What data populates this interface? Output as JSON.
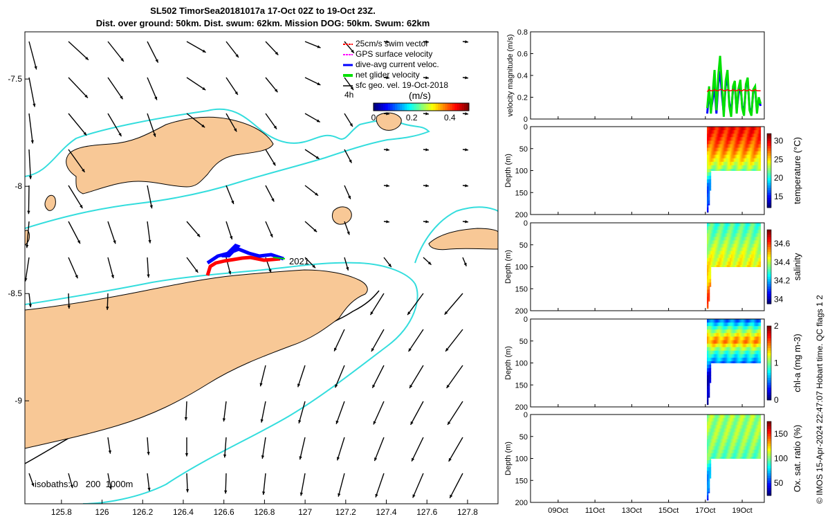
{
  "title": {
    "line1": "SL502 TimorSea20181017a 17-Oct 02Z to 19-Oct 23Z.",
    "line2": "Dist. over ground: 50km. Dist. swum: 62km. Mission DOG: 50km. Swum: 62km"
  },
  "credit": "© IMOS 15-Apr-2024 22:47:07 Hobart time. QC flags 1  2",
  "colors": {
    "land": "#f8c896",
    "coast_edge": "#000000",
    "isobath_200": "#000000",
    "isobath_1000": "#33dddd",
    "track_gps": "#ff0000",
    "track_current": "#0000ff",
    "net_velocity": "#00e000",
    "velocity_magnitude_line": "#0000ff"
  },
  "map": {
    "xticks": [
      "125.8",
      "126",
      "126.2",
      "126.4",
      "126.6",
      "126.8",
      "127",
      "127.2",
      "127.4",
      "127.6",
      "127.8"
    ],
    "yticks": [
      "-7.5",
      "-8",
      "-8.5",
      "-9"
    ],
    "xlim": [
      125.62,
      127.95
    ],
    "ylim": [
      -9.48,
      -7.28
    ],
    "legend": [
      {
        "label": "25cm/s swim vector",
        "color": "#ff0000"
      },
      {
        "label": "GPS surface velocity",
        "color": "#ff00ff"
      },
      {
        "label": "dive-avg current veloc.",
        "color": "#0000ff"
      },
      {
        "label": "net glider velocity",
        "color": "#00e000"
      },
      {
        "label": "sfc geo. vel. 19-Oct-2018",
        "color": "#000000"
      }
    ],
    "colorbar": {
      "title": "(m/s)",
      "tick_labels": [
        "0",
        "0.2",
        "0.4"
      ],
      "range": [
        0,
        0.5
      ],
      "note": "4h"
    },
    "track_label": "2021",
    "isobath_label": "isobaths: 0   200  1000m"
  },
  "time_axis": {
    "labels": [
      "09Oct",
      "11Oct",
      "13Oct",
      "15Oct",
      "17Oct",
      "19Oct"
    ],
    "days": [
      9,
      11,
      13,
      15,
      17,
      19
    ],
    "range_days": [
      7.5,
      20.2
    ],
    "data_start_day": 17.08,
    "data_end_day": 20.0
  },
  "chart_data": [
    {
      "type": "line",
      "title": "",
      "xlabel": "",
      "ylabel": "velocity magnitude (m/s)",
      "ylim": [
        0,
        0.8
      ],
      "yticks": [
        "0",
        "0.2",
        "0.4",
        "0.6",
        "0.8"
      ],
      "x_units": "day of October 2018",
      "x": [
        17.1,
        17.2,
        17.3,
        17.4,
        17.5,
        17.6,
        17.7,
        17.8,
        17.9,
        18.0,
        18.1,
        18.2,
        18.3,
        18.4,
        18.5,
        18.6,
        18.7,
        18.8,
        18.9,
        19.0,
        19.1,
        19.2,
        19.3,
        19.4,
        19.5,
        19.6,
        19.7,
        19.8,
        19.9,
        20.0
      ],
      "series": [
        {
          "color": "#0000ff",
          "values": [
            0.05,
            0.25,
            0.08,
            0.18,
            0.3,
            0.05,
            0.32,
            0.44,
            0.22,
            0.05,
            0.3,
            0.38,
            0.15,
            0.05,
            0.28,
            0.3,
            0.08,
            0.22,
            0.32,
            0.12,
            0.06,
            0.3,
            0.35,
            0.1,
            0.05,
            0.25,
            0.28,
            0.08,
            0.18,
            0.12
          ]
        },
        {
          "color": "#00e000",
          "values": [
            0.1,
            0.3,
            0.05,
            0.25,
            0.45,
            0.08,
            0.4,
            0.58,
            0.3,
            0.02,
            0.35,
            0.45,
            0.12,
            0.02,
            0.3,
            0.35,
            0.05,
            0.28,
            0.36,
            0.1,
            0.03,
            0.32,
            0.38,
            0.08,
            0.03,
            0.27,
            0.3,
            0.05,
            0.2,
            0.14
          ]
        },
        {
          "color": "#ff0000",
          "values": [
            0.25,
            0.27,
            0.26,
            0.26,
            0.27,
            0.26,
            0.26,
            0.27,
            0.27,
            0.26,
            0.26,
            0.27,
            0.26,
            0.26,
            0.27,
            0.26,
            0.26,
            0.27,
            0.26,
            0.26,
            0.27,
            0.26,
            0.26,
            0.27,
            0.26,
            0.26,
            0.27,
            0.26,
            0.26,
            0.26
          ]
        }
      ]
    },
    {
      "type": "heatmap",
      "ylabel": "Depth (m)",
      "ylim": [
        200,
        0
      ],
      "yticks": [
        "0",
        "50",
        "100",
        "150",
        "200"
      ],
      "colorbar_label": "temperature (°C)",
      "colorbar_range": [
        12,
        32
      ],
      "colorbar_ticks": [
        "15",
        "20",
        "25",
        "30"
      ],
      "profile_depth_days": [
        17.08,
        17.15,
        17.25,
        17.3,
        20.0
      ],
      "profile_depth_m": [
        200,
        190,
        160,
        100,
        100
      ],
      "depth_levels_m": [
        0,
        25,
        50,
        75,
        100,
        125,
        150,
        175,
        200
      ],
      "profile_values": [
        29.5,
        28.5,
        27.0,
        25.0,
        22.0,
        18.5,
        16.0,
        15.0,
        14.0
      ]
    },
    {
      "type": "heatmap",
      "ylabel": "Depth (m)",
      "ylim": [
        200,
        0
      ],
      "yticks": [
        "0",
        "50",
        "100",
        "150",
        "200"
      ],
      "colorbar_label": "salinity",
      "colorbar_range": [
        33.95,
        34.75
      ],
      "colorbar_ticks": [
        "34",
        "34.2",
        "34.4",
        "34.6"
      ],
      "profile_depth_days": [
        17.08,
        17.15,
        17.25,
        17.3,
        20.0
      ],
      "profile_depth_m": [
        200,
        190,
        160,
        100,
        100
      ],
      "depth_levels_m": [
        0,
        25,
        50,
        75,
        100,
        125,
        150,
        175,
        200
      ],
      "profile_values": [
        34.3,
        34.33,
        34.38,
        34.42,
        34.45,
        34.5,
        34.55,
        34.58,
        34.6
      ]
    },
    {
      "type": "heatmap",
      "ylabel": "Depth (m)",
      "ylim": [
        200,
        0
      ],
      "yticks": [
        "0",
        "50",
        "100",
        "150",
        "200"
      ],
      "colorbar_label": "chl-a (mg m-3)",
      "colorbar_range": [
        0,
        2
      ],
      "colorbar_ticks": [
        "0",
        "1",
        "2"
      ],
      "profile_depth_days": [
        17.08,
        17.15,
        17.25,
        17.3,
        20.0
      ],
      "profile_depth_m": [
        200,
        190,
        160,
        100,
        100
      ],
      "depth_levels_m": [
        0,
        25,
        50,
        75,
        100,
        125,
        150,
        175,
        200
      ],
      "profile_values": [
        0.4,
        1.0,
        1.5,
        0.9,
        0.5,
        0.25,
        0.1,
        0.05,
        0.02
      ]
    },
    {
      "type": "heatmap",
      "ylabel": "Depth (m)",
      "ylim": [
        200,
        0
      ],
      "yticks": [
        "0",
        "50",
        "100",
        "150",
        "200"
      ],
      "colorbar_label": "Ox. sat. ratio (%)",
      "colorbar_range": [
        25,
        175
      ],
      "colorbar_ticks": [
        "50",
        "100",
        "150"
      ],
      "profile_depth_days": [
        17.08,
        17.15,
        17.25,
        17.3,
        20.0
      ],
      "profile_depth_m": [
        200,
        190,
        160,
        100,
        100
      ],
      "depth_levels_m": [
        0,
        25,
        50,
        75,
        100,
        125,
        150,
        175,
        200
      ],
      "profile_values": [
        105,
        104,
        103,
        100,
        95,
        80,
        65,
        55,
        45
      ]
    }
  ]
}
